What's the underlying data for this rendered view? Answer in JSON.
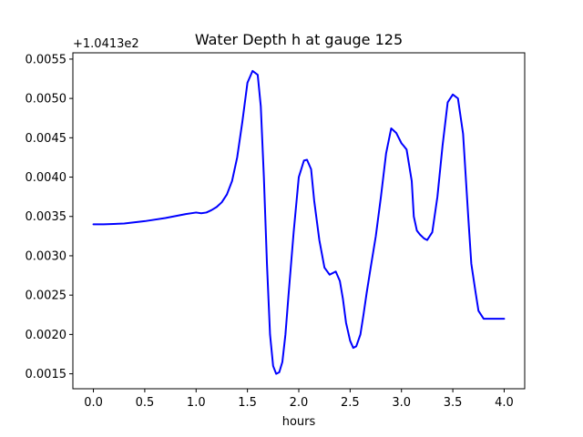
{
  "chart_data": {
    "type": "line",
    "title": "Water Depth h at gauge 125",
    "xlabel": "hours",
    "ylabel": "",
    "y_offset_label": "+1.0413e2",
    "xlim": [
      -0.2,
      4.2
    ],
    "ylim": [
      0.00131,
      0.00558
    ],
    "x_ticks": [
      0.0,
      0.5,
      1.0,
      1.5,
      2.0,
      2.5,
      3.0,
      3.5,
      4.0
    ],
    "x_tick_labels": [
      "0.0",
      "0.5",
      "1.0",
      "1.5",
      "2.0",
      "2.5",
      "3.0",
      "3.5",
      "4.0"
    ],
    "y_ticks": [
      0.0015,
      0.002,
      0.0025,
      0.003,
      0.0035,
      0.004,
      0.0045,
      0.005,
      0.0055
    ],
    "y_tick_labels": [
      "0.0015",
      "0.0020",
      "0.0025",
      "0.0030",
      "0.0035",
      "0.0040",
      "0.0045",
      "0.0050",
      "0.0055"
    ],
    "grid": false,
    "legend": "none",
    "series": [
      {
        "color": "#0000ff",
        "x": [
          0.0,
          0.1,
          0.3,
          0.5,
          0.7,
          0.9,
          1.0,
          1.05,
          1.1,
          1.15,
          1.2,
          1.25,
          1.3,
          1.35,
          1.4,
          1.45,
          1.5,
          1.55,
          1.6,
          1.63,
          1.66,
          1.69,
          1.72,
          1.75,
          1.78,
          1.81,
          1.84,
          1.87,
          1.9,
          1.95,
          2.0,
          2.05,
          2.08,
          2.12,
          2.15,
          2.2,
          2.25,
          2.3,
          2.33,
          2.36,
          2.4,
          2.43,
          2.46,
          2.5,
          2.53,
          2.56,
          2.6,
          2.63,
          2.66,
          2.7,
          2.75,
          2.8,
          2.85,
          2.9,
          2.95,
          3.0,
          3.02,
          3.05,
          3.1,
          3.12,
          3.15,
          3.18,
          3.22,
          3.25,
          3.3,
          3.35,
          3.4,
          3.45,
          3.5,
          3.55,
          3.6,
          3.65,
          3.68,
          3.72,
          3.75,
          3.8,
          3.85,
          3.9,
          3.95,
          4.0
        ],
        "y": [
          0.0034,
          0.0034,
          0.00341,
          0.00344,
          0.00348,
          0.00353,
          0.00355,
          0.00354,
          0.00355,
          0.00358,
          0.00362,
          0.00368,
          0.00378,
          0.00395,
          0.00425,
          0.0047,
          0.0052,
          0.00535,
          0.0053,
          0.0049,
          0.004,
          0.0029,
          0.002,
          0.0016,
          0.0015,
          0.00152,
          0.00165,
          0.002,
          0.0025,
          0.0033,
          0.004,
          0.00421,
          0.00422,
          0.0041,
          0.0037,
          0.0032,
          0.00285,
          0.00276,
          0.00278,
          0.0028,
          0.00268,
          0.00245,
          0.00215,
          0.00192,
          0.00183,
          0.00185,
          0.002,
          0.00225,
          0.00252,
          0.00285,
          0.00325,
          0.00375,
          0.0043,
          0.00462,
          0.00456,
          0.00443,
          0.0044,
          0.00435,
          0.00395,
          0.0035,
          0.00332,
          0.00327,
          0.00322,
          0.0032,
          0.0033,
          0.00375,
          0.0044,
          0.00495,
          0.00505,
          0.005,
          0.00455,
          0.0035,
          0.0029,
          0.00255,
          0.0023,
          0.0022,
          0.0022,
          0.0022,
          0.0022,
          0.0022
        ]
      }
    ]
  }
}
